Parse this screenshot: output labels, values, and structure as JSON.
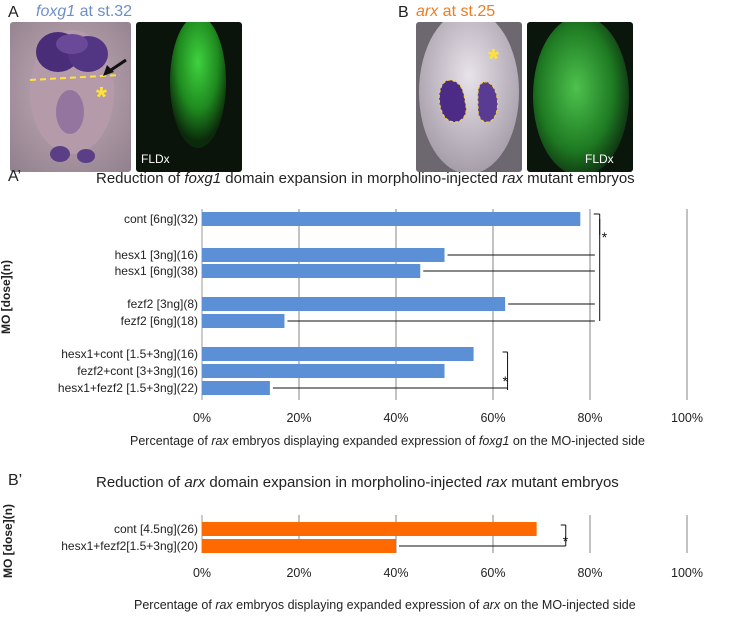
{
  "panels": {
    "A": {
      "letter": "A",
      "gene": "foxg1",
      "stage": " at st.32",
      "fl_label": "FLDx"
    },
    "B": {
      "letter": "B",
      "gene": "arx",
      "stage": " at st.25",
      "fl_label": "FLDx"
    }
  },
  "chart_data": [
    {
      "type": "bar",
      "letter": "A’",
      "title_parts": [
        "Reduction of ",
        "foxg1",
        " domain expansion in morpholino-injected ",
        "rax",
        " mutant embryos"
      ],
      "ylabel": "MO [dose](n)",
      "xlabel_parts": [
        "Percentage of ",
        "rax",
        " embryos displaying expanded expression of ",
        "foxg1",
        " on the MO-injected side"
      ],
      "xlim": [
        0,
        100
      ],
      "ticks": [
        "0%",
        "20%",
        "40%",
        "60%",
        "80%",
        "100%"
      ],
      "bar_color": "#5b8fd6",
      "grid": true,
      "categories": [
        "cont [6ng](32)",
        "hesx1 [3ng](16)",
        "hesx1 [6ng](38)",
        "fezf2 [3ng](8)",
        "fezf2 [6ng](18)",
        "hesx1+cont [1.5+3ng](16)",
        "fezf2+cont [3+3ng](16)",
        "hesx1+fezf2 [1.5+3ng](22)"
      ],
      "values": [
        78,
        50,
        45,
        62.5,
        17,
        56,
        50,
        14
      ],
      "significance": [
        "*",
        "*"
      ]
    },
    {
      "type": "bar",
      "letter": "B’",
      "title_parts": [
        "Reduction of ",
        "arx",
        " domain expansion in morpholino-injected ",
        "rax",
        " mutant embryos"
      ],
      "ylabel": "MO [dose](n)",
      "xlabel_parts": [
        "Percentage of ",
        "rax",
        " embryos displaying expanded expression of ",
        "arx",
        " on the MO-injected side"
      ],
      "xlim": [
        0,
        100
      ],
      "ticks": [
        "0%",
        "20%",
        "40%",
        "60%",
        "80%",
        "100%"
      ],
      "bar_color": "#ff6a00",
      "grid": true,
      "categories": [
        "cont [4.5ng](26)",
        "hesx1+fezf2[1.5+3ng](20)"
      ],
      "values": [
        69,
        40
      ],
      "significance": [
        "*"
      ]
    }
  ]
}
